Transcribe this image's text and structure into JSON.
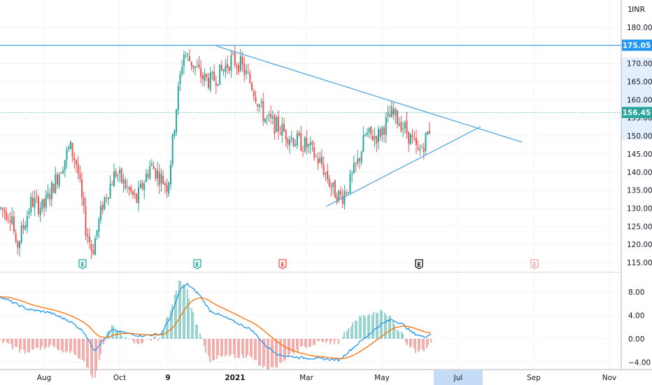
{
  "chart_data": {
    "type": "candlestick",
    "currency": "INR",
    "y_axis": {
      "ticks": [
        115,
        120,
        125,
        130,
        135,
        140,
        145,
        150,
        155,
        160,
        165,
        170,
        175,
        180
      ],
      "tick_labels": [
        "115.00",
        "120.00",
        "125.00",
        "130.00",
        "135.00",
        "140.00",
        "145.00",
        "150.00",
        "155.00",
        "160.00",
        "165.00",
        "170.00",
        "175.00",
        "180.00"
      ],
      "range": [
        112,
        185
      ]
    },
    "x_axis": {
      "labels": [
        "Aug",
        "Oct",
        "9",
        "2021",
        "Mar",
        "May",
        "Jul",
        "Sep",
        "Nov"
      ],
      "highlighted": "Jul"
    },
    "price_labels": {
      "resistance": {
        "value": 175.05,
        "text": "175.05",
        "color": "#2196f3"
      },
      "last": {
        "value": 156.45,
        "text": "156.45",
        "color": "#26a69a"
      }
    },
    "earnings_markers": [
      {
        "label": "E",
        "state": "positive"
      },
      {
        "label": "E",
        "state": "positive"
      },
      {
        "label": "E",
        "state": "negative"
      },
      {
        "label": "E",
        "state": "neutral"
      },
      {
        "label": "E",
        "state": "future"
      }
    ],
    "macd": {
      "ticks": [
        8,
        4,
        0,
        -4
      ],
      "tick_labels": [
        "8.00",
        "4.00",
        "0.00",
        "−4.00"
      ],
      "range": [
        -5,
        10
      ]
    },
    "colors": {
      "up": "#26a69a",
      "down": "#ef5350",
      "trendline": "#4aa3df",
      "macd_line": "#2196f3",
      "signal_line": "#ff6d00"
    }
  }
}
